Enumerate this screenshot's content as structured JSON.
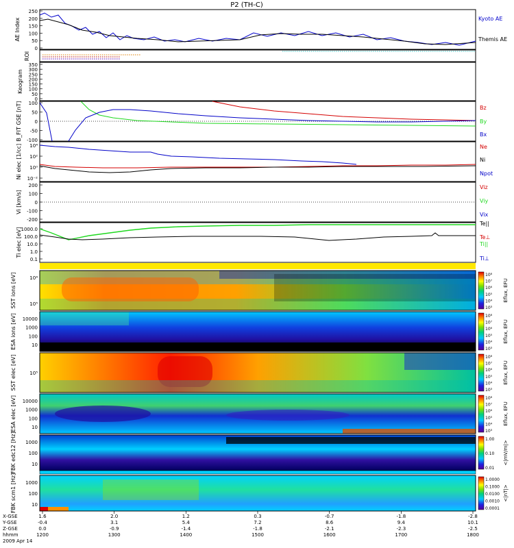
{
  "title": "P2 (TH-C)",
  "colors": {
    "kyoto": "#0000cc",
    "themis": "#000000",
    "red": "#d40000",
    "green": "#1ed81e",
    "blue": "#0000c8",
    "black": "#000000",
    "cyan": "#3cc6c6"
  },
  "panels": {
    "ae": {
      "ylabel": "AE Index",
      "ticks": [
        "250",
        "200",
        "150",
        "100",
        "50",
        "0"
      ],
      "legend": [
        "Kyoto AE",
        "Themis AE"
      ]
    },
    "roi": {
      "ylabel": "ROI"
    },
    "keogram": {
      "ylabel": "Keogram",
      "ticks": [
        "350",
        "300",
        "250",
        "200",
        "150",
        "100",
        "50",
        "0"
      ]
    },
    "bfit": {
      "ylabel": "B_FIT GSE [nT]",
      "ticks": [
        "100",
        "50",
        "0",
        "-50",
        "-100"
      ],
      "legend": [
        "Bz",
        "By",
        "Bx"
      ]
    },
    "ni": {
      "ylabel": "Ni elec [1/cc]",
      "ticks": [
        "10⁴",
        "10²",
        "10⁰",
        "10⁻²"
      ],
      "legend": [
        "Ne",
        "Ni",
        "Npot"
      ]
    },
    "vi": {
      "ylabel": "Vi [km/s]",
      "ticks": [
        "200",
        "100",
        "0",
        "-100",
        "-200"
      ],
      "legend": [
        "Viz",
        "Viy",
        "Vix"
      ]
    },
    "ti": {
      "ylabel": "Ti elec [eV]",
      "ticks": [
        "1000.0",
        "100.0",
        "10.0",
        "1.0",
        "0.1"
      ],
      "legend": [
        "Te||",
        "Te⊥",
        "Ti||",
        "Ti⊥"
      ]
    },
    "sst_ion": {
      "ylabel": "SST ions [eV]",
      "ticks": [
        "10⁴",
        "10⁵"
      ],
      "cbar": "Eflux, EFU",
      "cticks": [
        "10⁸",
        "10⁷",
        "10⁶",
        "10⁵",
        "10⁴",
        "10³"
      ]
    },
    "esa_ion": {
      "ylabel": "ESA ions [eV]",
      "ticks": [
        "10000",
        "1000",
        "100",
        "10"
      ],
      "cbar": "Eflux, EFU",
      "cticks": [
        "10⁸",
        "10⁷",
        "10⁶",
        "10⁵",
        "10⁴",
        "10³"
      ]
    },
    "sst_elec": {
      "ylabel": "SST elec [eV]",
      "ticks": [
        "10⁵"
      ],
      "cbar": "Eflux, EFU",
      "cticks": [
        "10⁸",
        "10⁷",
        "10⁶",
        "10⁵",
        "10⁴",
        "10³"
      ]
    },
    "esa_elec": {
      "ylabel": "ESA elec [eV]",
      "ticks": [
        "10000",
        "1000",
        "100",
        "10"
      ],
      "cbar": "Eflux, EFU",
      "cticks": [
        "10⁸",
        "10⁷",
        "10⁶",
        "10⁵",
        "10⁴",
        "10³"
      ]
    },
    "fbk_e": {
      "ylabel": "FBK edc12 [Hz]",
      "ticks": [
        "1000",
        "100",
        "10"
      ],
      "cbar": "<|mV/m|>",
      "cticks": [
        "1.00",
        "0.10",
        "0.01"
      ]
    },
    "fbk_b": {
      "ylabel": "FBK scm1 [Hz]",
      "ticks": [
        "1000",
        "100",
        "10"
      ],
      "cbar": "<|nT|>",
      "cticks": [
        "1.0000",
        "0.1000",
        "0.0100",
        "0.0010",
        "0.0001"
      ]
    }
  },
  "xaxis": {
    "row_labels": [
      "X-GSE",
      "Y-GSE",
      "Z-GSE",
      "hhmm",
      "2009 Apr 14"
    ],
    "columns": [
      {
        "x": "1.6",
        "y": "-0.4",
        "z": "0.0",
        "t": "1200"
      },
      {
        "x": "2.0",
        "y": "3.1",
        "z": "-0.9",
        "t": "1300"
      },
      {
        "x": "1.2",
        "y": "5.4",
        "z": "-1.4",
        "t": "1400"
      },
      {
        "x": "0.3",
        "y": "7.2",
        "z": "-1.8",
        "t": "1500"
      },
      {
        "x": "-0.7",
        "y": "8.6",
        "z": "-2.1",
        "t": "1600"
      },
      {
        "x": "-1.8",
        "y": "9.4",
        "z": "-2.3",
        "t": "1700"
      },
      {
        "x": "-2.8",
        "y": "10.1",
        "z": "-2.5",
        "t": "1800"
      }
    ]
  },
  "chart_data": {
    "type": "line",
    "title": "P2 (TH-C)",
    "x": [
      "1200",
      "1300",
      "1400",
      "1500",
      "1600",
      "1700",
      "1800"
    ],
    "series": [
      {
        "name": "Kyoto AE",
        "values": [
          240,
          150,
          70,
          80,
          85,
          60,
          40
        ]
      },
      {
        "name": "Themis AE",
        "values": [
          200,
          140,
          80,
          75,
          70,
          45,
          30
        ]
      },
      {
        "name": "Bz",
        "values": [
          null,
          null,
          null,
          100,
          60,
          30,
          15
        ]
      },
      {
        "name": "By",
        "values": [
          100,
          10,
          5,
          0,
          -2,
          -5,
          -10
        ]
      },
      {
        "name": "Bx",
        "values": [
          -100,
          50,
          60,
          50,
          35,
          20,
          10
        ]
      }
    ]
  }
}
